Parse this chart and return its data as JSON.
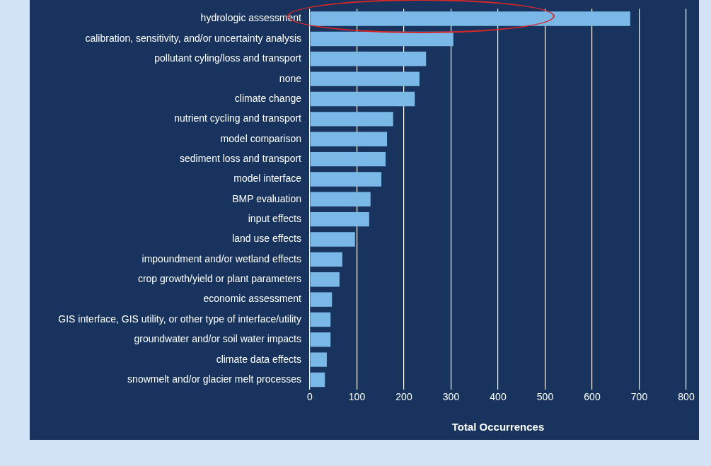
{
  "chart_data": {
    "type": "bar",
    "orientation": "horizontal",
    "xlabel": "Total Occurrences",
    "categories": [
      "hydrologic assessment",
      "calibration, sensitivity, and/or uncertainty analysis",
      "pollutant cyling/loss and transport",
      "none",
      "climate change",
      "nutrient cycling and transport",
      "model comparison",
      "sediment loss and transport",
      "model interface",
      "BMP evaluation",
      "input effects",
      "land use effects",
      "impoundment and/or wetland effects",
      "crop growth/yield or plant parameters",
      "economic assessment",
      "GIS interface, GIS utility, or other type of interface/utility",
      "groundwater and/or soil water impacts",
      "climate data effects",
      "snowmelt and/or glacier melt processes"
    ],
    "values": [
      681,
      305,
      247,
      233,
      223,
      177,
      164,
      161,
      152,
      129,
      126,
      96,
      69,
      63,
      47,
      44,
      44,
      36,
      32
    ],
    "color": "#7ab8e8",
    "xlim": [
      0,
      800
    ],
    "xticks": [
      0,
      100,
      200,
      300,
      400,
      500,
      600,
      700,
      800
    ],
    "grid": "x",
    "legend": false
  }
}
